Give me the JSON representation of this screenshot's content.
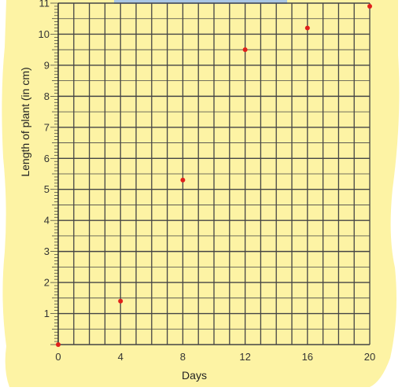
{
  "chart_data": {
    "type": "scatter",
    "title": "",
    "xlabel": "Days",
    "ylabel": "Length of plant (in cm)",
    "xlim": [
      0,
      20
    ],
    "ylim": [
      0,
      11
    ],
    "x_ticks": [
      0,
      4,
      8,
      12,
      16,
      20
    ],
    "x_tick_labels": [
      "0",
      "4",
      "8",
      "12",
      "16",
      "20"
    ],
    "y_ticks": [
      1,
      2,
      3,
      4,
      5,
      6,
      7,
      8,
      9,
      10,
      11
    ],
    "y_tick_labels": [
      "1",
      "2",
      "3",
      "4",
      "5",
      "6",
      "7",
      "8",
      "9",
      "10",
      "11"
    ],
    "grid": true,
    "series": [
      {
        "x": [
          0,
          4,
          8,
          12,
          16,
          20
        ],
        "y": [
          0,
          1.4,
          5.3,
          9.5,
          10.2,
          10.9
        ]
      }
    ],
    "colors": {
      "background": "#fdf3a4",
      "grid": "#444444",
      "point": "#e0201b",
      "header_bar": "#a9c6e4"
    }
  }
}
